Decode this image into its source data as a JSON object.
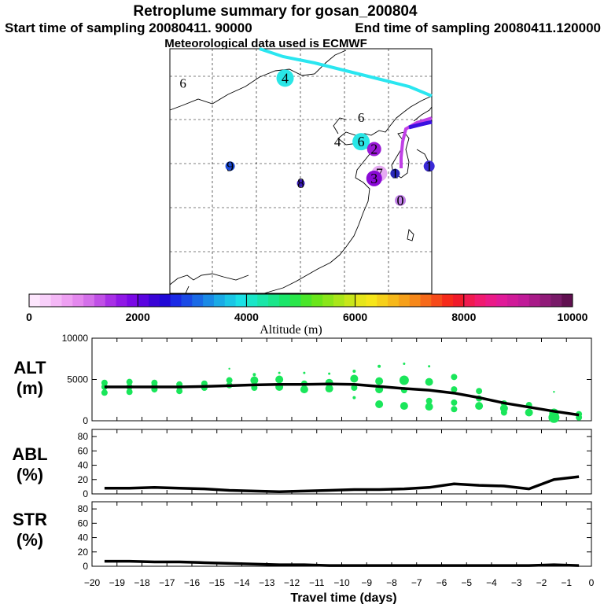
{
  "header": {
    "title": "Retroplume summary for gosan_200804",
    "start_time": "Start time of sampling 20080411. 90000",
    "end_time": "End time of sampling 20080411.120000",
    "met_data": "Meteorological data used is ECMWF"
  },
  "map": {
    "markers": [
      {
        "label": "6",
        "lon": 0.05,
        "lat": 0.86,
        "color": "#ffffff",
        "size": 0,
        "text_color": "#000000"
      },
      {
        "label": "4",
        "lon": 0.44,
        "lat": 0.88,
        "color": "#2ae6e6",
        "size": 11,
        "text_color": "#000000"
      },
      {
        "label": "4",
        "lon": 0.64,
        "lat": 0.62,
        "color": "#ffffff",
        "size": 0,
        "text_color": "#000000"
      },
      {
        "label": "6",
        "lon": 0.73,
        "lat": 0.72,
        "color": "#ffffff",
        "size": 0,
        "text_color": "#000000"
      },
      {
        "label": "6",
        "lon": 0.73,
        "lat": 0.62,
        "color": "#2ae6e6",
        "size": 11,
        "text_color": "#000000"
      },
      {
        "label": "2",
        "lon": 0.78,
        "lat": 0.59,
        "color": "#9a1ad6",
        "size": 9,
        "text_color": "#000000"
      },
      {
        "label": "9",
        "lon": 0.23,
        "lat": 0.52,
        "color": "#1a4ad6",
        "size": 6,
        "text_color": "#000000"
      },
      {
        "label": "8",
        "lon": 0.5,
        "lat": 0.45,
        "color": "#3a1ab8",
        "size": 5,
        "text_color": "#000000"
      },
      {
        "label": "7",
        "lon": 0.8,
        "lat": 0.49,
        "color": "#e6aaf2",
        "size": 10,
        "text_color": "#000000"
      },
      {
        "label": "3",
        "lon": 0.78,
        "lat": 0.47,
        "color": "#8a0ad6",
        "size": 10,
        "text_color": "#000000"
      },
      {
        "label": "1",
        "lon": 0.86,
        "lat": 0.49,
        "color": "#2a2ab8",
        "size": 6,
        "text_color": "#000000"
      },
      {
        "label": "1",
        "lon": 0.99,
        "lat": 0.52,
        "color": "#3a2ad6",
        "size": 7,
        "text_color": "#000000"
      },
      {
        "label": "0",
        "lon": 0.88,
        "lat": 0.38,
        "color": "#c080e6",
        "size": 7,
        "text_color": "#000000"
      }
    ]
  },
  "colorbar": {
    "min": 0,
    "max": 10000,
    "tick_labels": [
      "0",
      "2000",
      "4000",
      "6000",
      "8000",
      "10000"
    ],
    "tick_values": [
      0,
      2000,
      4000,
      6000,
      8000,
      10000
    ],
    "title": "Altitude (m)",
    "colors": [
      "#fde6fd",
      "#f8d0fa",
      "#f4b8f6",
      "#eea0f2",
      "#e488ee",
      "#d470ea",
      "#c050e6",
      "#a830e6",
      "#9018e6",
      "#7a08e6",
      "#5a04e0",
      "#3a04d6",
      "#2008d6",
      "#1a2ae6",
      "#1a4ae6",
      "#1a6ae6",
      "#1a8ae6",
      "#1aaae6",
      "#1ac6e6",
      "#1ae0e6",
      "#1ae6c8",
      "#1ae6a8",
      "#1ae68a",
      "#1ae66a",
      "#2ae64a",
      "#4ae62a",
      "#6ae61a",
      "#8ae61a",
      "#aae61a",
      "#c8e61a",
      "#e6e61a",
      "#f6e61a",
      "#f6d01a",
      "#f6b81a",
      "#f6a01a",
      "#f6881a",
      "#f66a1a",
      "#f64a1a",
      "#f62a1a",
      "#f01a2a",
      "#f01a50",
      "#f01a70",
      "#ea1a88",
      "#e01a98",
      "#d01a98",
      "#c01a98",
      "#a81a88",
      "#901a78",
      "#781a68",
      "#601050"
    ]
  },
  "panels": {
    "alt": {
      "label_line1": "ALT",
      "label_line2": "(m)",
      "ymax": 10000,
      "tick_labels": [
        "0",
        "5000",
        "10000"
      ],
      "tick_values": [
        0,
        5000,
        10000
      ]
    },
    "abl": {
      "label_line1": "ABL",
      "label_line2": "(%)",
      "ymax": 90,
      "tick_labels": [
        "0",
        "20",
        "40",
        "60",
        "80"
      ],
      "tick_values": [
        0,
        20,
        40,
        60,
        80
      ]
    },
    "str": {
      "label_line1": "STR",
      "label_line2": "(%)",
      "ymax": 90,
      "tick_labels": [
        "0",
        "20",
        "40",
        "60",
        "80"
      ],
      "tick_values": [
        0,
        20,
        40,
        60,
        80
      ]
    },
    "x_tick_labels": [
      "−20",
      "−19",
      "−18",
      "−17",
      "−16",
      "−15",
      "−14",
      "−13",
      "−12",
      "−11",
      "−10",
      "−9",
      "−8",
      "−7",
      "−6",
      "−5",
      "−4",
      "−3",
      "−2",
      "−1",
      "0"
    ],
    "x_tick_values": [
      -20,
      -19,
      -18,
      -17,
      -16,
      -15,
      -14,
      -13,
      -12,
      -11,
      -10,
      -9,
      -8,
      -7,
      -6,
      -5,
      -4,
      -3,
      -2,
      -1,
      0
    ],
    "xlabel": "Travel time (days)",
    "point_color": "#1ae65a"
  },
  "chart_data": [
    {
      "type": "line",
      "title": "ALT (m)",
      "xlabel": "Travel time (days)",
      "ylabel": "ALT (m)",
      "xlim": [
        -20,
        0
      ],
      "ylim": [
        0,
        10000
      ],
      "series": [
        {
          "name": "mean altitude",
          "x": [
            -19.5,
            -18.5,
            -17.5,
            -16.5,
            -15.5,
            -14.5,
            -13.5,
            -12.5,
            -11.5,
            -10.5,
            -9.5,
            -8.5,
            -7.5,
            -6.5,
            -5.5,
            -4.5,
            -3.5,
            -2.5,
            -1.5,
            -0.5
          ],
          "y": [
            4100,
            4100,
            4100,
            4100,
            4150,
            4250,
            4350,
            4400,
            4400,
            4450,
            4400,
            4150,
            3900,
            3700,
            3350,
            2800,
            2150,
            1650,
            1150,
            700
          ]
        }
      ],
      "scatter": {
        "x": [
          -19.5,
          -19.5,
          -19.5,
          -18.5,
          -18.5,
          -18.5,
          -17.5,
          -17.5,
          -17.5,
          -16.5,
          -16.5,
          -16.5,
          -15.5,
          -15.5,
          -14.5,
          -14.5,
          -14.5,
          -13.5,
          -13.5,
          -13.5,
          -12.5,
          -12.5,
          -12.5,
          -11.5,
          -11.5,
          -11.5,
          -10.5,
          -10.5,
          -10.5,
          -9.5,
          -9.5,
          -9.5,
          -9.5,
          -8.5,
          -8.5,
          -8.5,
          -8.5,
          -7.5,
          -7.5,
          -7.5,
          -7.5,
          -6.5,
          -6.5,
          -6.5,
          -6.5,
          -5.5,
          -5.5,
          -5.5,
          -5.5,
          -4.5,
          -4.5,
          -4.5,
          -3.5,
          -3.5,
          -3.5,
          -2.5,
          -2.5,
          -1.5,
          -1.5,
          -1.5,
          -0.5,
          -0.5
        ],
        "y": [
          4600,
          4100,
          3400,
          4700,
          4100,
          3500,
          4600,
          4200,
          3800,
          4400,
          4100,
          3600,
          4500,
          4000,
          4900,
          4300,
          6300,
          5600,
          4900,
          4000,
          5800,
          5000,
          4100,
          5800,
          4500,
          3800,
          5700,
          4600,
          3900,
          6000,
          5100,
          4000,
          2800,
          6600,
          4800,
          3800,
          2000,
          6900,
          4900,
          3700,
          1800,
          6600,
          4700,
          2400,
          1700,
          5300,
          3800,
          2200,
          1400,
          3600,
          2700,
          1800,
          2100,
          1500,
          1000,
          1900,
          1000,
          3500,
          900,
          400,
          800,
          400
        ],
        "r": [
          4,
          4,
          4,
          4,
          4,
          4,
          4,
          4,
          4,
          4,
          4,
          4,
          4,
          4,
          4,
          4,
          1.2,
          2,
          5,
          4,
          1.5,
          5,
          5,
          1.5,
          4,
          5,
          1.5,
          5,
          5,
          2,
          5,
          4,
          2,
          2,
          5,
          5,
          5,
          1.5,
          6,
          4,
          5,
          1.5,
          5,
          4,
          5,
          4,
          4,
          4,
          4,
          4,
          4,
          5,
          4,
          5,
          4,
          4,
          5,
          1.2,
          6,
          7,
          4,
          4
        ]
      }
    },
    {
      "type": "line",
      "title": "ABL (%)",
      "xlabel": "Travel time (days)",
      "ylabel": "ABL (%)",
      "xlim": [
        -20,
        0
      ],
      "ylim": [
        0,
        90
      ],
      "series": [
        {
          "name": "ABL",
          "x": [
            -19.5,
            -18.5,
            -17.5,
            -16.5,
            -15.5,
            -14.5,
            -13.5,
            -12.5,
            -11.5,
            -10.5,
            -9.5,
            -8.5,
            -7.5,
            -6.5,
            -5.5,
            -4.5,
            -3.5,
            -2.5,
            -1.5,
            -0.5
          ],
          "y": [
            8,
            8,
            9,
            8,
            7,
            5,
            4,
            3,
            4,
            5,
            6,
            6,
            7,
            9,
            14,
            12,
            11,
            7,
            20,
            24
          ]
        }
      ]
    },
    {
      "type": "line",
      "title": "STR (%)",
      "xlabel": "Travel time (days)",
      "ylabel": "STR (%)",
      "xlim": [
        -20,
        0
      ],
      "ylim": [
        0,
        90
      ],
      "series": [
        {
          "name": "STR",
          "x": [
            -19.5,
            -18.5,
            -17.5,
            -16.5,
            -15.5,
            -14.5,
            -13.5,
            -12.5,
            -11.5,
            -10.5,
            -9.5,
            -8.5,
            -7.5,
            -6.5,
            -5.5,
            -4.5,
            -3.5,
            -2.5,
            -1.5,
            -0.5
          ],
          "y": [
            7,
            7,
            6,
            6,
            5,
            4,
            3,
            2,
            2,
            1,
            1,
            1,
            1,
            1,
            1,
            1,
            1,
            1,
            2,
            1
          ]
        }
      ]
    }
  ]
}
